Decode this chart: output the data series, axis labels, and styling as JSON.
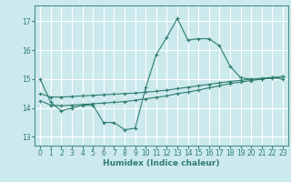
{
  "xlabel": "Humidex (Indice chaleur)",
  "bg_color": "#cce9ed",
  "grid_color": "#ffffff",
  "line_color": "#2e7d6e",
  "xlim": [
    -0.5,
    23.5
  ],
  "ylim": [
    12.7,
    17.55
  ],
  "xticks": [
    0,
    1,
    2,
    3,
    4,
    5,
    6,
    7,
    8,
    9,
    10,
    11,
    12,
    13,
    14,
    15,
    16,
    17,
    18,
    19,
    20,
    21,
    22,
    23
  ],
  "yticks": [
    13,
    14,
    15,
    16,
    17
  ],
  "curve1_x": [
    0,
    1,
    2,
    3,
    4,
    5,
    6,
    7,
    8,
    9,
    10,
    11,
    12,
    13,
    14,
    15,
    16,
    17,
    18,
    19,
    20,
    21,
    22,
    23
  ],
  "curve1_y": [
    15.0,
    14.2,
    13.9,
    14.0,
    14.1,
    14.1,
    13.5,
    13.5,
    13.25,
    13.3,
    14.7,
    15.85,
    16.45,
    17.1,
    16.35,
    16.4,
    16.4,
    16.15,
    15.45,
    15.05,
    15.0,
    15.0,
    15.05,
    15.0
  ],
  "curve2_x": [
    0,
    1,
    2,
    3,
    4,
    5,
    6,
    7,
    8,
    9,
    10,
    11,
    12,
    13,
    14,
    15,
    16,
    17,
    18,
    19,
    20,
    21,
    22,
    23
  ],
  "curve2_y": [
    14.25,
    14.1,
    14.08,
    14.1,
    14.12,
    14.15,
    14.17,
    14.2,
    14.22,
    14.27,
    14.32,
    14.37,
    14.42,
    14.5,
    14.55,
    14.62,
    14.7,
    14.77,
    14.85,
    14.9,
    14.95,
    15.0,
    15.03,
    15.08
  ],
  "curve3_x": [
    0,
    1,
    2,
    3,
    4,
    5,
    6,
    7,
    8,
    9,
    10,
    11,
    12,
    13,
    14,
    15,
    16,
    17,
    18,
    19,
    20,
    21,
    22,
    23
  ],
  "curve3_y": [
    14.5,
    14.38,
    14.38,
    14.4,
    14.42,
    14.44,
    14.46,
    14.48,
    14.5,
    14.52,
    14.55,
    14.58,
    14.62,
    14.67,
    14.72,
    14.77,
    14.82,
    14.87,
    14.92,
    14.96,
    15.0,
    15.03,
    15.06,
    15.09
  ]
}
